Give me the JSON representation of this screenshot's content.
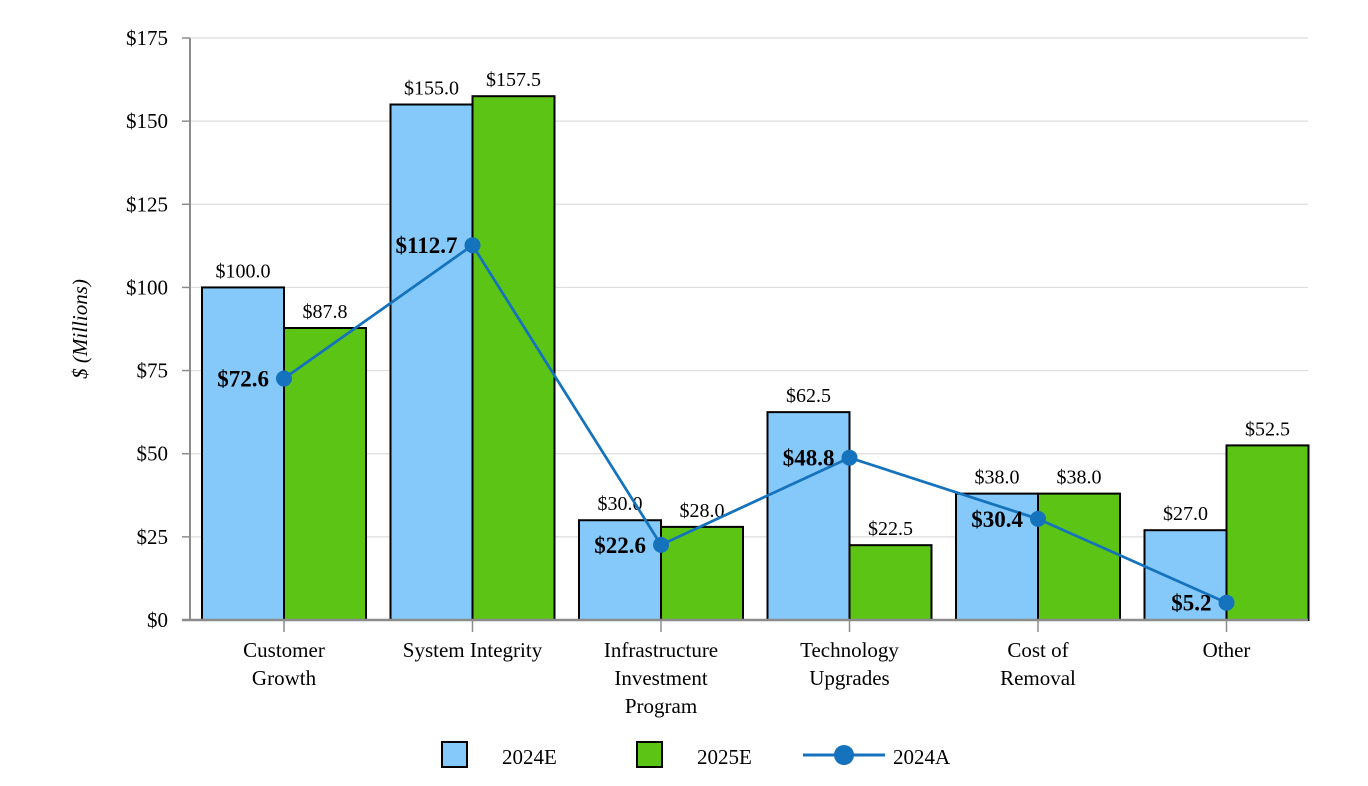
{
  "chart_data": {
    "type": "combo",
    "title": "",
    "ylabel": "$ (Millions)",
    "y_axis": {
      "min": 0,
      "max": 175,
      "step": 25,
      "tick_prefix": "$"
    },
    "grid": true,
    "legend_position": "bottom",
    "value_label_format": "$#.0",
    "categories": [
      {
        "label": "Customer Growth",
        "lines": [
          "Customer",
          "Growth"
        ]
      },
      {
        "label": "System Integrity",
        "lines": [
          "System Integrity"
        ]
      },
      {
        "label": "Infrastructure Investment Program",
        "lines": [
          "Infrastructure",
          "Investment",
          "Program"
        ]
      },
      {
        "label": "Technology Upgrades",
        "lines": [
          "Technology",
          "Upgrades"
        ]
      },
      {
        "label": "Cost of Removal",
        "lines": [
          "Cost of",
          "Removal"
        ]
      },
      {
        "label": "Other",
        "lines": [
          "Other"
        ]
      }
    ],
    "bar_series": [
      {
        "name": "2024E",
        "color": "#85C9FB",
        "values": [
          100.0,
          155.0,
          30.0,
          62.5,
          38.0,
          27.0
        ]
      },
      {
        "name": "2025E",
        "color": "#5CC414",
        "values": [
          87.8,
          157.5,
          28.0,
          22.5,
          38.0,
          52.5
        ]
      }
    ],
    "line_series": [
      {
        "name": "2024A",
        "color": "#1572BC",
        "values": [
          72.6,
          112.7,
          22.6,
          48.8,
          30.4,
          5.2
        ]
      }
    ],
    "styles": {
      "bar_outline": "#000000",
      "axis_color": "#8C8C8C",
      "gridline_color": "#DDDDDD",
      "label_color": "#000000",
      "background": "#FFFFFF"
    }
  }
}
